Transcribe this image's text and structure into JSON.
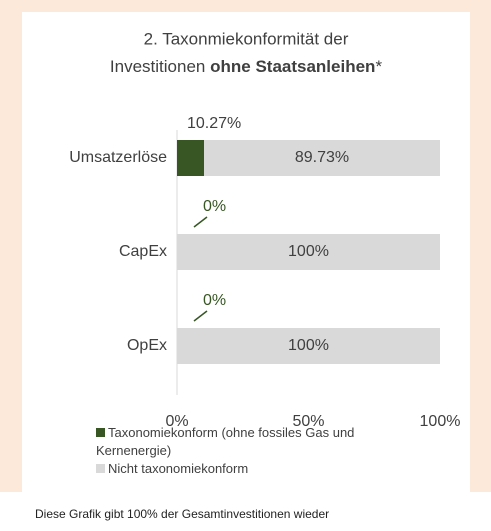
{
  "chart_data": {
    "type": "stacked_bar_horizontal",
    "title_lines": [
      "2. Taxonmiekonformität der",
      "Investitionen"
    ],
    "title_bold": "ohne Staatsanleihen",
    "title_suffix": "*",
    "categories": [
      "Umsatzerlöse",
      "CapEx",
      "OpEx"
    ],
    "series": [
      {
        "name": "Taxonomiekonform (ohne fossiles Gas und Kernenergie)",
        "color": "#375623",
        "values": [
          10.27,
          0,
          0
        ],
        "value_labels": [
          "10.27%",
          "0%",
          "0%"
        ]
      },
      {
        "name": "Nicht taxonomiekonform",
        "color": "#d9d9d9",
        "values": [
          89.73,
          100,
          100
        ],
        "value_labels": [
          "89.73%",
          "100%",
          "100%"
        ]
      }
    ],
    "xlim": [
      0,
      100
    ],
    "xticks": [
      {
        "value": 0,
        "label": "0%"
      },
      {
        "value": 50,
        "label": "50%"
      },
      {
        "value": 100,
        "label": "100%"
      }
    ],
    "legend": "bottom",
    "footnote": "Diese Grafik gibt 100% der Gesamtinvestitionen wieder"
  }
}
